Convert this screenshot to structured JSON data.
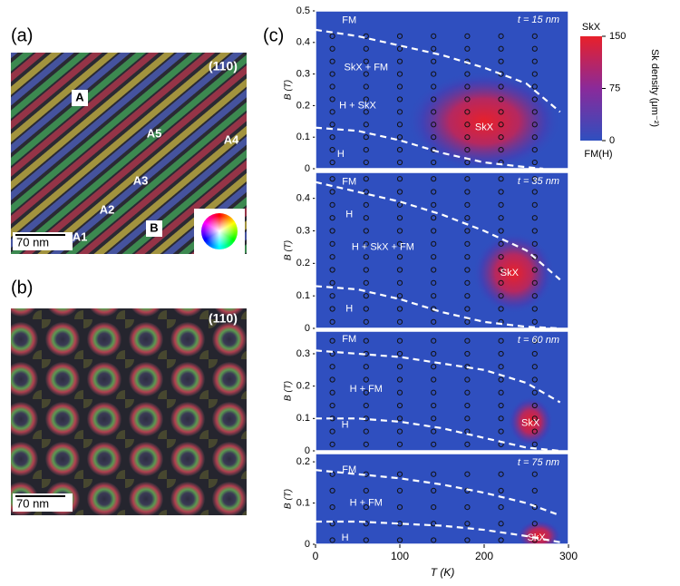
{
  "panel_a": {
    "label": "(a)",
    "orientation": "(110)",
    "scale_bar": "70 nm",
    "labels": [
      "A",
      "A5",
      "A4",
      "A3",
      "A2",
      "B",
      "A1"
    ]
  },
  "panel_b": {
    "label": "(b)",
    "orientation": "(110)",
    "scale_bar": "70 nm"
  },
  "panel_c": {
    "label": "(c)",
    "x_label": "T (K)",
    "y_label": "B (T)",
    "xlim": [
      0,
      300
    ],
    "xticks": [
      0,
      100,
      200,
      300
    ],
    "points_T": [
      20,
      60,
      100,
      140,
      180,
      220,
      260
    ],
    "colorbar": {
      "title": "SkX",
      "label": "Sk density (μm⁻²)",
      "clim": [
        0,
        150
      ],
      "ticks": [
        0,
        75,
        150
      ],
      "bottom_label": "FM(H)"
    },
    "plots": [
      {
        "thickness": "t = 15 nm",
        "ylim": [
          0,
          0.5
        ],
        "yticks": [
          0,
          0.1,
          0.2,
          0.3,
          0.4,
          0.5
        ],
        "points_B": [
          0.02,
          0.06,
          0.1,
          0.14,
          0.18,
          0.22,
          0.26,
          0.3,
          0.34,
          0.38,
          0.42
        ],
        "regions": [
          {
            "text": "FM",
            "x": 40,
            "y": 0.47
          },
          {
            "text": "SkX + FM",
            "x": 60,
            "y": 0.32
          },
          {
            "text": "H + SkX",
            "x": 50,
            "y": 0.2
          },
          {
            "text": "SkX",
            "x": 200,
            "y": 0.13
          },
          {
            "text": "H",
            "x": 30,
            "y": 0.045
          }
        ],
        "boundaries": [
          {
            "x": [
              0,
              50,
              100,
              150,
              200,
              250,
              290
            ],
            "y": [
              0.44,
              0.42,
              0.39,
              0.36,
              0.32,
              0.27,
              0.18
            ]
          },
          {
            "x": [
              0,
              50,
              100,
              150,
              200,
              250,
              270
            ],
            "y": [
              0.13,
              0.12,
              0.09,
              0.05,
              0.02,
              0.005,
              0
            ]
          }
        ]
      },
      {
        "thickness": "t = 35 nm",
        "ylim": [
          0,
          0.48
        ],
        "yticks": [
          0,
          0.1,
          0.2,
          0.3,
          0.4
        ],
        "points_B": [
          0.02,
          0.06,
          0.1,
          0.14,
          0.18,
          0.22,
          0.26,
          0.3,
          0.34,
          0.38,
          0.42,
          0.46
        ],
        "regions": [
          {
            "text": "FM",
            "x": 40,
            "y": 0.45
          },
          {
            "text": "H",
            "x": 40,
            "y": 0.35
          },
          {
            "text": "H + SkX + FM",
            "x": 80,
            "y": 0.25
          },
          {
            "text": "SkX",
            "x": 230,
            "y": 0.17
          },
          {
            "text": "H",
            "x": 40,
            "y": 0.06
          }
        ],
        "boundaries": [
          {
            "x": [
              0,
              50,
              100,
              150,
              200,
              250,
              290
            ],
            "y": [
              0.45,
              0.42,
              0.39,
              0.35,
              0.3,
              0.24,
              0.15
            ]
          },
          {
            "x": [
              0,
              50,
              100,
              150,
              200,
              250,
              290
            ],
            "y": [
              0.13,
              0.12,
              0.09,
              0.05,
              0.02,
              0.005,
              0
            ]
          }
        ]
      },
      {
        "thickness": "t = 60 nm",
        "ylim": [
          0,
          0.37
        ],
        "yticks": [
          0,
          0.1,
          0.2,
          0.3
        ],
        "points_B": [
          0.02,
          0.06,
          0.1,
          0.14,
          0.18,
          0.22,
          0.26,
          0.3,
          0.34
        ],
        "regions": [
          {
            "text": "FM",
            "x": 40,
            "y": 0.345
          },
          {
            "text": "H + FM",
            "x": 60,
            "y": 0.19
          },
          {
            "text": "H",
            "x": 35,
            "y": 0.08
          },
          {
            "text": "SkX",
            "x": 255,
            "y": 0.085
          }
        ],
        "boundaries": [
          {
            "x": [
              0,
              50,
              100,
              150,
              200,
              250,
              290
            ],
            "y": [
              0.31,
              0.3,
              0.29,
              0.27,
              0.25,
              0.21,
              0.15
            ]
          },
          {
            "x": [
              0,
              50,
              100,
              150,
              200,
              250,
              290
            ],
            "y": [
              0.1,
              0.1,
              0.09,
              0.07,
              0.04,
              0.01,
              0
            ]
          }
        ]
      },
      {
        "thickness": "t = 75 nm",
        "ylim": [
          0,
          0.22
        ],
        "yticks": [
          0,
          0.1,
          0.2
        ],
        "points_B": [
          0.01,
          0.05,
          0.09,
          0.13,
          0.17
        ],
        "regions": [
          {
            "text": "FM",
            "x": 40,
            "y": 0.18
          },
          {
            "text": "H + FM",
            "x": 60,
            "y": 0.1
          },
          {
            "text": "H",
            "x": 35,
            "y": 0.015
          },
          {
            "text": "SkX",
            "x": 262,
            "y": 0.015
          }
        ],
        "boundaries": [
          {
            "x": [
              0,
              50,
              100,
              150,
              200,
              250,
              290
            ],
            "y": [
              0.18,
              0.17,
              0.16,
              0.145,
              0.125,
              0.1,
              0.07
            ]
          },
          {
            "x": [
              0,
              50,
              100,
              150,
              200,
              250,
              290
            ],
            "y": [
              0.055,
              0.055,
              0.05,
              0.045,
              0.035,
              0.02,
              0.005
            ]
          }
        ]
      }
    ]
  }
}
